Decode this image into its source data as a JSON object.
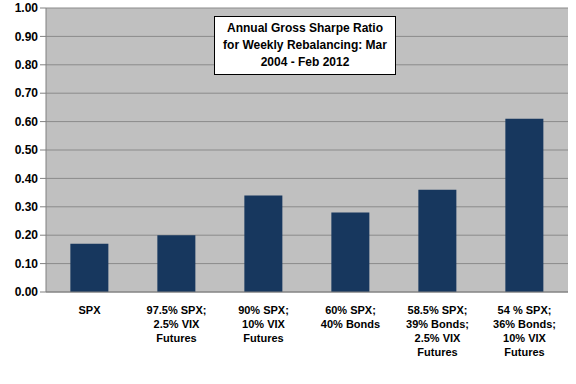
{
  "chart_data": {
    "type": "bar",
    "title": "Annual Gross Sharpe Ratio for Weekly Rebalancing: Mar 2004 - Feb 2012",
    "categories": [
      "SPX",
      "97.5% SPX; 2.5% VIX Futures",
      "90% SPX; 10% VIX Futures",
      "60% SPX; 40% Bonds",
      "58.5% SPX; 39% Bonds; 2.5% VIX Futures",
      "54 % SPX; 36% Bonds; 10% VIX Futures"
    ],
    "values": [
      0.17,
      0.2,
      0.34,
      0.28,
      0.36,
      0.61
    ],
    "color": "#17375e",
    "ylim": [
      0,
      1
    ],
    "yticks": [
      {
        "value": 0,
        "label": "0.00"
      },
      {
        "value": 0.1,
        "label": "0.10"
      },
      {
        "value": 0.2,
        "label": "0.20"
      },
      {
        "value": 0.3,
        "label": "0.30"
      },
      {
        "value": 0.4,
        "label": "0.40"
      },
      {
        "value": 0.5,
        "label": "0.50"
      },
      {
        "value": 0.6,
        "label": "0.60"
      },
      {
        "value": 0.7,
        "label": "0.70"
      },
      {
        "value": 0.8,
        "label": "0.80"
      },
      {
        "value": 0.9,
        "label": "0.90"
      },
      {
        "value": 1,
        "label": "1.00"
      }
    ],
    "grid": true
  }
}
